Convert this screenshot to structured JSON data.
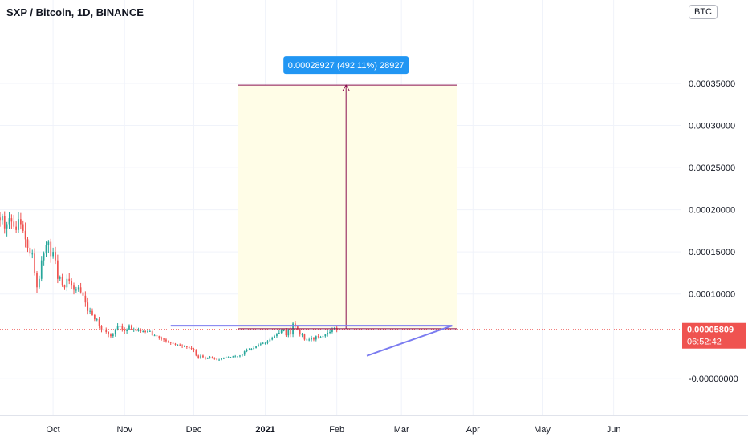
{
  "header": {
    "symbol_title": "SXP / Bitcoin, 1D, BINANCE",
    "currency": "BTC"
  },
  "colors": {
    "up": "#26a69a",
    "down": "#ef5350",
    "price_line": "#ef5350",
    "measure": "#880e4f",
    "measure_label_bg": "#2196f3",
    "measure_fill": "#fffde7",
    "trendline": "#7b7cf0",
    "grid": "#f0f3fa",
    "axis_text": "#131722"
  },
  "chart_data": {
    "type": "candlestick",
    "grid": true,
    "y_axis": {
      "position": "right",
      "range": [
        -4.4e-05,
        0.000449
      ],
      "ticks": [
        "0.00035000",
        "0.00030000",
        "0.00025000",
        "0.00020000",
        "0.00015000",
        "0.00010000",
        "-0.00000000"
      ],
      "tick_values": [
        0.00035,
        0.0003,
        0.00025,
        0.0002,
        0.00015,
        0.0001,
        0.0
      ]
    },
    "x_axis": {
      "range": [
        "2020-09-08",
        "2021-06-30"
      ],
      "ticks": [
        {
          "label": "Oct",
          "date": "2020-10-01",
          "bold": false
        },
        {
          "label": "Nov",
          "date": "2020-11-01",
          "bold": false
        },
        {
          "label": "Dec",
          "date": "2020-12-01",
          "bold": false
        },
        {
          "label": "2021",
          "date": "2021-01-01",
          "bold": true
        },
        {
          "label": "Feb",
          "date": "2021-02-01",
          "bold": false
        },
        {
          "label": "Mar",
          "date": "2021-03-01",
          "bold": false
        },
        {
          "label": "Apr",
          "date": "2021-04-01",
          "bold": false
        },
        {
          "label": "May",
          "date": "2021-05-01",
          "bold": false
        },
        {
          "label": "Jun",
          "date": "2021-06-01",
          "bold": false
        }
      ]
    },
    "close_series": {
      "start_date": "2020-09-08",
      "interval": "1D",
      "close": [
        0.000187,
        0.000192,
        0.000178,
        0.000183,
        0.00019,
        0.000186,
        0.00018,
        0.000176,
        0.000189,
        0.000183,
        0.000175,
        0.000165,
        0.000155,
        0.000148,
        0.000148,
        0.000125,
        0.000108,
        0.000118,
        0.00014,
        0.000148,
        0.000158,
        0.000162,
        0.000145,
        0.00015,
        0.00014,
        0.000118,
        0.00012,
        0.00011,
        0.000108,
        0.000118,
        0.000115,
        0.00011,
        0.000105,
        0.000105,
        0.000108,
        0.000102,
        9.8e-05,
        9e-05,
        8e-05,
        8e-05,
        7.5e-05,
        7e-05,
        7e-05,
        6.2e-05,
        5.8e-05,
        5.8e-05,
        5.5e-05,
        5.2e-05,
        5e-05,
        5.2e-05,
        5.8e-05,
        6.2e-05,
        6.2e-05,
        5.8e-05,
        5.6e-05,
        5.8e-05,
        6.3e-05,
        5.8e-05,
        5.8e-05,
        5.6e-05,
        5.8e-05,
        5.6e-05,
        5.6e-05,
        5.5e-05,
        5.6e-05,
        5.6e-05,
        5.1e-05,
        5.1e-05,
        5e-05,
        4.8e-05,
        4.7e-05,
        4.6e-05,
        4.4e-05,
        4.3e-05,
        4.2e-05,
        4.1e-05,
        4e-05,
        4e-05,
        3.9e-05,
        3.8e-05,
        3.8e-05,
        3.7e-05,
        3.6e-05,
        3.5e-05,
        3.3e-05,
        2.7e-05,
        2.4e-05,
        2.7e-05,
        2.5e-05,
        2.3e-05,
        2.4e-05,
        2.5e-05,
        2.4e-05,
        2.3e-05,
        2.2e-05,
        2.2e-05,
        2.4e-05,
        2.4e-05,
        2.5e-05,
        2.5e-05,
        2.5e-05,
        2.6e-05,
        2.6e-05,
        2.6e-05,
        2.7e-05,
        2.8e-05,
        3.2e-05,
        3.4e-05,
        3.4e-05,
        3.5e-05,
        3.6e-05,
        3.8e-05,
        4e-05,
        4.1e-05,
        4.2e-05,
        4.2e-05,
        4.4e-05,
        4.6e-05,
        4.8e-05,
        5e-05,
        5.3e-05,
        5.4e-05,
        5.7e-05,
        5.7e-05,
        5.1e-05,
        5.8e-05,
        5.2e-05,
        6.5e-05,
        6.2e-05,
        5.8e-05,
        5.2e-05,
        5.2e-05,
        4.6e-05,
        4.6e-05,
        4.6e-05,
        4.8e-05,
        4.6e-05,
        5e-05,
        4.9e-05,
        4.9e-05,
        5e-05,
        5.2e-05,
        5.4e-05,
        5.5e-05,
        5.8e-05,
        6e-05,
        5.8e-05
      ],
      "last_close": 5.809e-05
    },
    "annotations": {
      "measure_label": "0.00028927 (492.11%) 28927",
      "measure_price_range": [
        5.89e-05,
        0.000348
      ],
      "measure_date_range": [
        "2020-12-20",
        "2021-03-25"
      ],
      "measure_arrow_date": "2021-02-05",
      "resistance_line": {
        "from_date": "2020-11-21",
        "to_date": "2021-03-23",
        "price": 6.25e-05
      },
      "support_line": {
        "from": {
          "date": "2021-02-14",
          "price": 2.67e-05
        },
        "to": {
          "date": "2021-03-23",
          "price": 6.25e-05
        }
      }
    },
    "current_price_label": "0.00005809",
    "countdown_label": "06:52:42"
  }
}
